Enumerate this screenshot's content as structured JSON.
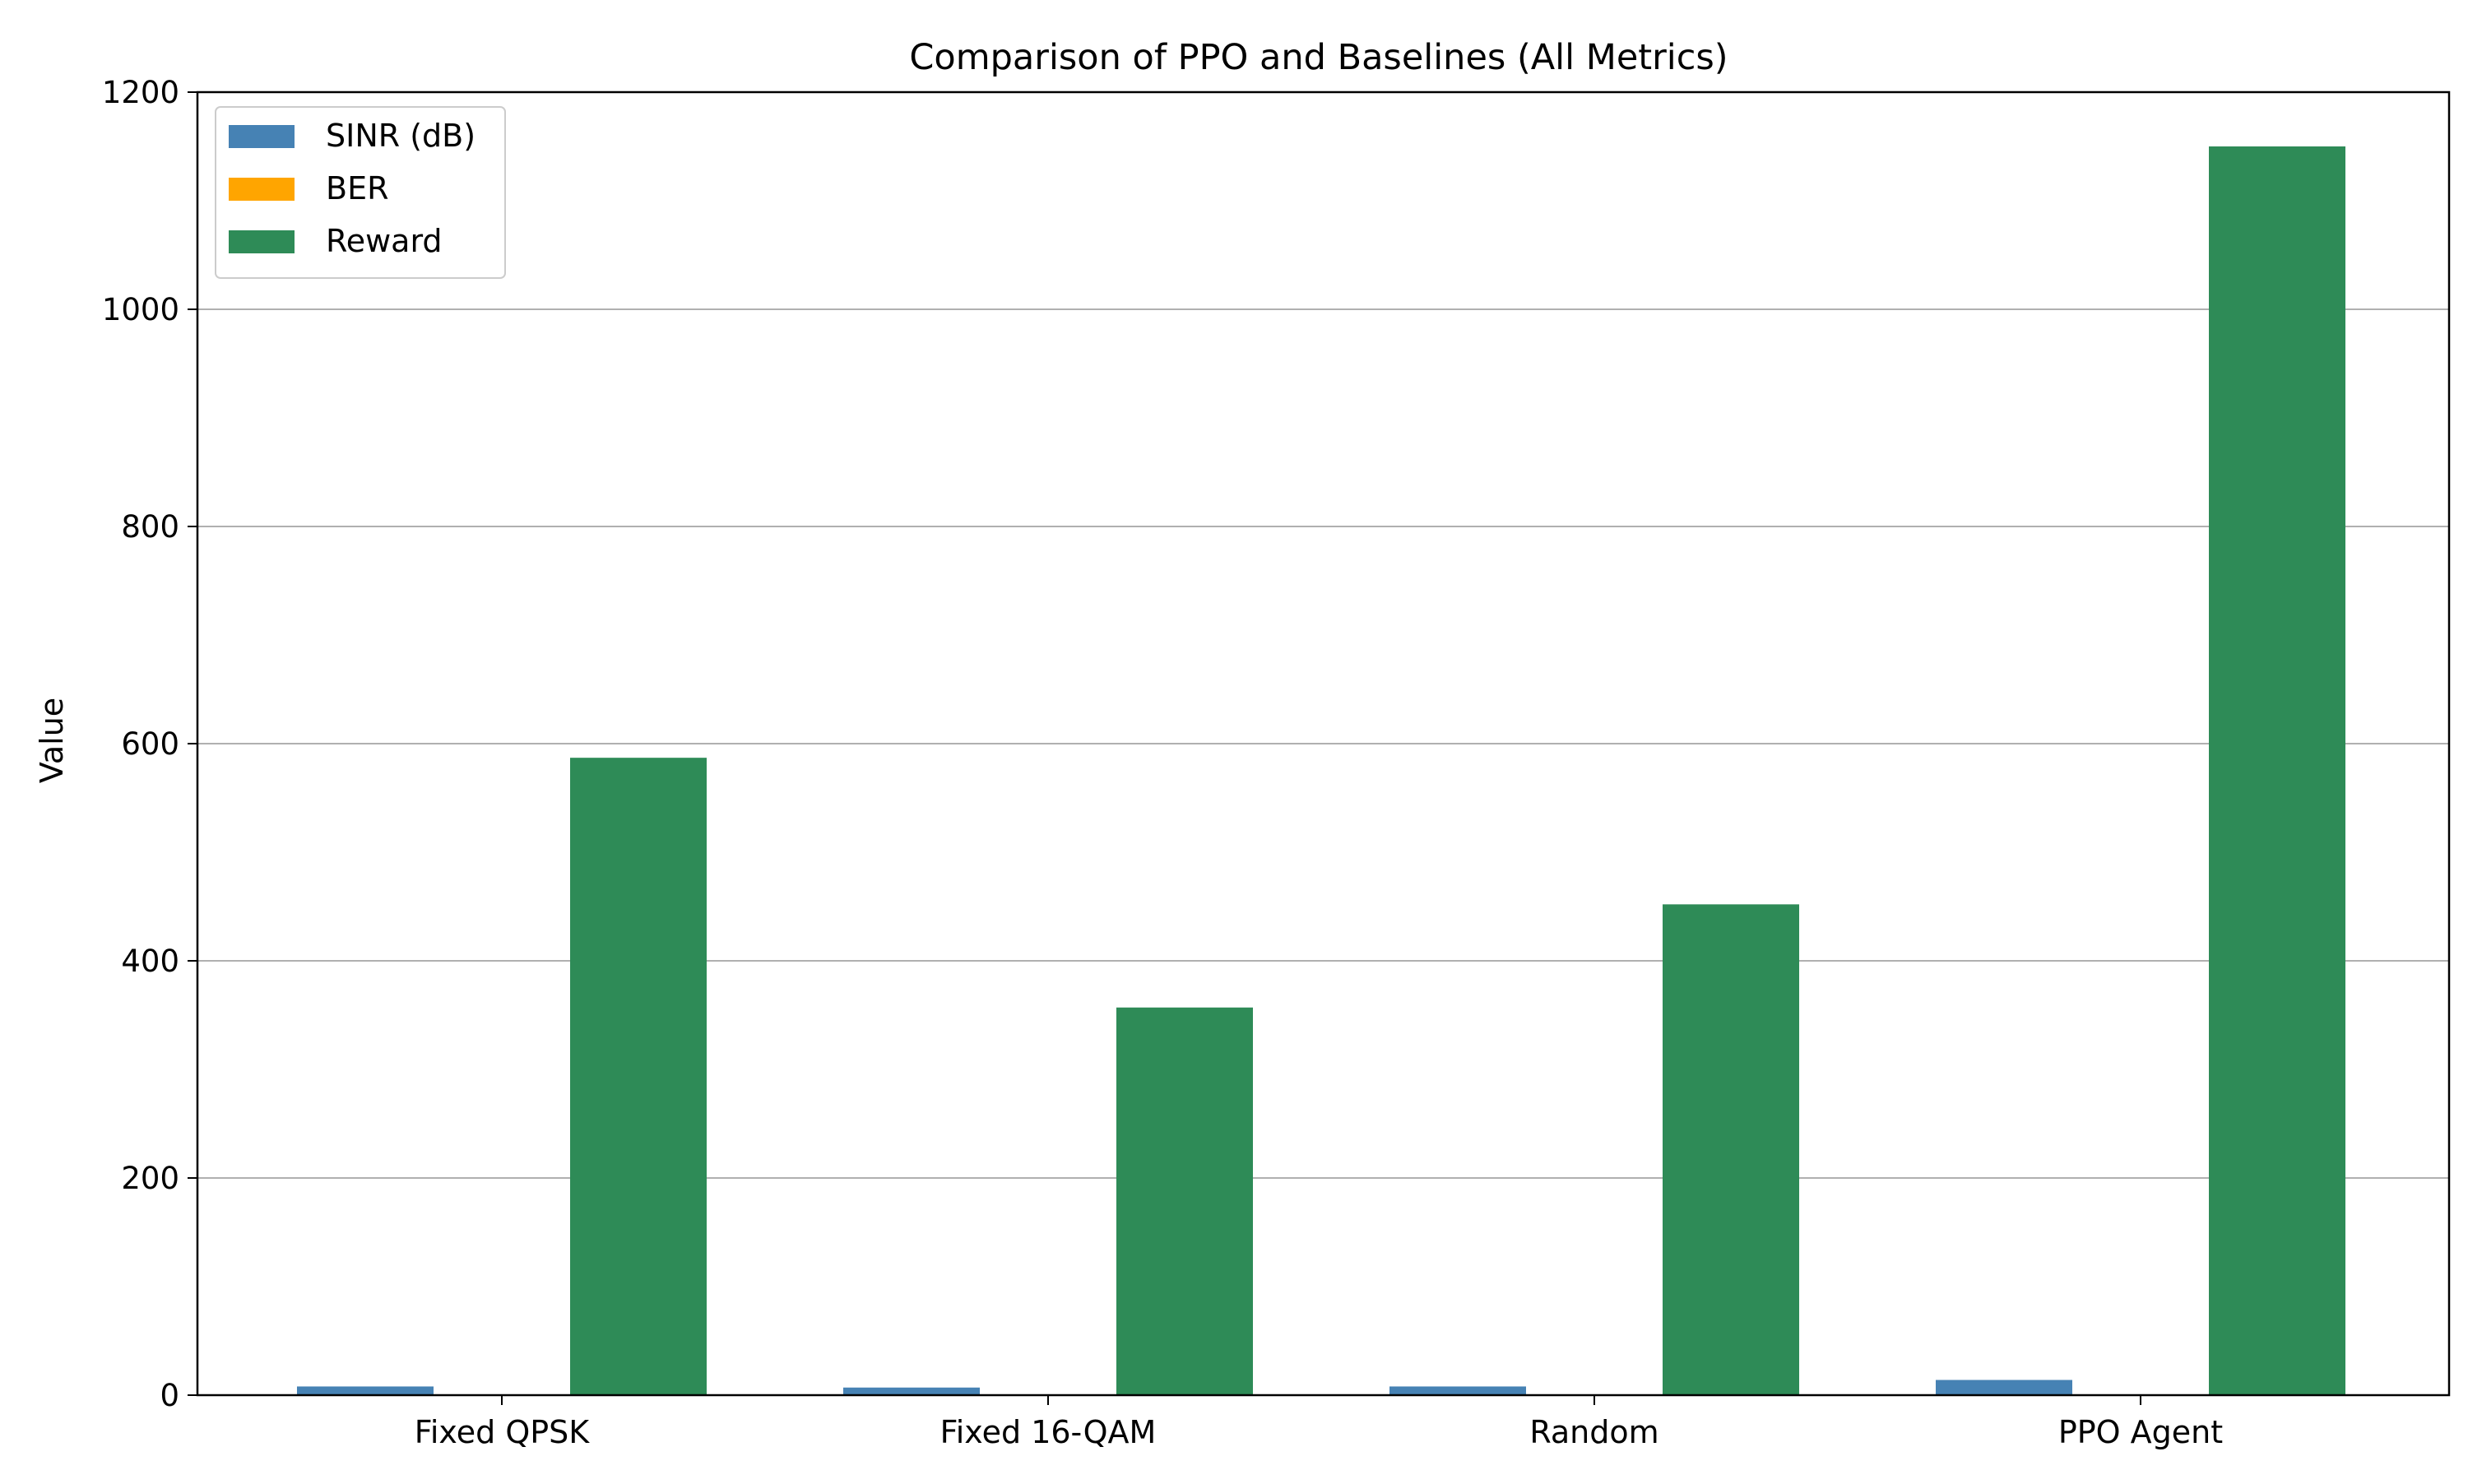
{
  "chart_data": {
    "type": "bar",
    "title": "Comparison of PPO and Baselines (All Metrics)",
    "xlabel": "",
    "ylabel": "Value",
    "ylim": [
      0,
      1200
    ],
    "yticks": [
      0,
      200,
      400,
      600,
      800,
      1000,
      1200
    ],
    "grid": {
      "axis": "y",
      "on": true
    },
    "legend_position": "top-left",
    "categories": [
      "Fixed QPSK",
      "Fixed 16-QAM",
      "Random",
      "PPO Agent"
    ],
    "series": [
      {
        "name": "SINR (dB)",
        "color": "#4682b4",
        "values": [
          8,
          7,
          8,
          14
        ]
      },
      {
        "name": "BER",
        "color": "#ffa500",
        "values": [
          0.05,
          0.1,
          0.08,
          0.02
        ]
      },
      {
        "name": "Reward",
        "color": "#2e8b57",
        "values": [
          587,
          357,
          452,
          1150
        ]
      }
    ]
  }
}
